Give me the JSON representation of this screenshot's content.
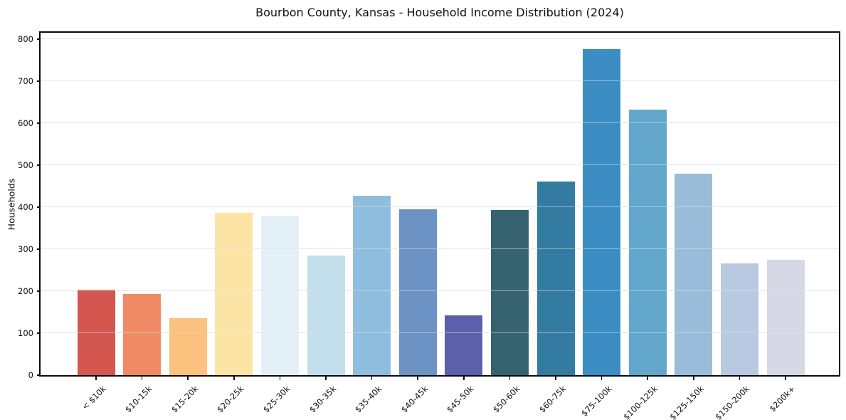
{
  "chart_data": {
    "type": "bar",
    "title": "Bourbon County, Kansas - Household Income Distribution (2024)",
    "xlabel": "",
    "ylabel": "Households",
    "categories": [
      "< $10k",
      "$10-15k",
      "$15-20k",
      "$20-25k",
      "$25-30k",
      "$30-35k",
      "$35-40k",
      "$40-45k",
      "$45-50k",
      "$50-60k",
      "$60-75k",
      "$75-100k",
      "$100-125k",
      "$125-150k",
      "$150-200k",
      "$200k+"
    ],
    "values": [
      204,
      193,
      135,
      386,
      380,
      285,
      427,
      395,
      142,
      393,
      461,
      777,
      633,
      480,
      266,
      274
    ],
    "colors": [
      "#d3574e",
      "#f08a64",
      "#fac17f",
      "#fce4a4",
      "#e3f0f6",
      "#c3dfec",
      "#8fbddd",
      "#6d92c4",
      "#5c60ab",
      "#376270",
      "#337ba1",
      "#3b8dc3",
      "#62a6cc",
      "#99bcda",
      "#b9c9e1",
      "#d7d8e5"
    ],
    "ylim": [
      0,
      815
    ],
    "yticks": [
      0,
      100,
      200,
      300,
      400,
      500,
      600,
      700,
      800
    ],
    "grid": "horizontal",
    "legend_position": "none",
    "x_tick_rotation_deg": 45
  },
  "style": {
    "background": "#ffffff",
    "grid_color": "#e6e6e6",
    "grid_over_bars_color": "rgba(230,230,230,0.55)",
    "spine_color": "#0a0a0a",
    "text_color": "#111111"
  }
}
